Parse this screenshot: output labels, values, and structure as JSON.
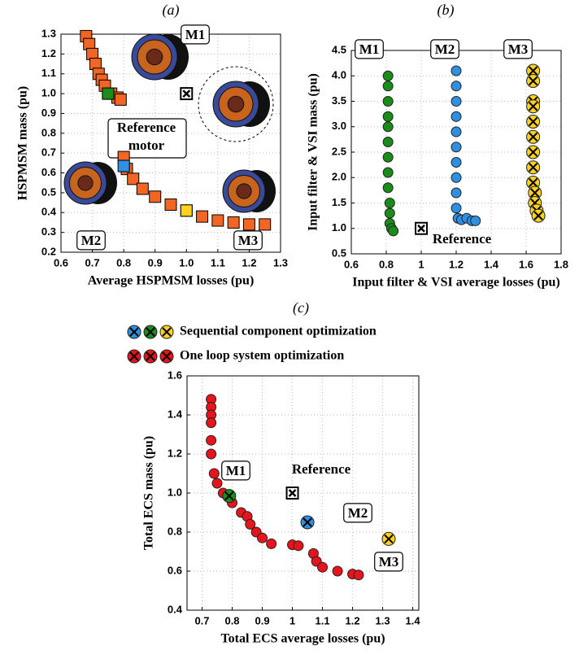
{
  "chart_data": [
    {
      "type": "scatter",
      "title": "(a)",
      "xlabel": "Average HSPMSM losses (pu)",
      "ylabel": "HSPMSM mass (pu)",
      "xlim": [
        0.6,
        1.3
      ],
      "ylim": [
        0.2,
        1.3
      ],
      "xticks": [
        0.6,
        0.7,
        0.8,
        0.9,
        {
          "value": 1,
          "label": "1.0"
        },
        1.1,
        1.2,
        1.3
      ],
      "yticks": [
        0.2,
        0.3,
        0.4,
        0.5,
        0.6,
        0.7,
        0.8,
        0.9,
        {
          "value": 1,
          "label": "1.0"
        },
        1.1,
        1.2,
        1.3
      ],
      "grid": true,
      "series": [
        {
          "color": "#f26522",
          "marker": "square",
          "x": [
            0.68,
            0.69,
            0.7,
            0.71,
            0.72,
            0.73,
            0.74,
            0.76,
            0.78,
            0.79,
            0.8,
            0.81,
            0.83,
            0.86,
            0.9,
            0.95,
            1.0,
            1.05,
            1.1,
            1.15,
            1.2,
            1.25
          ],
          "y": [
            1.29,
            1.25,
            1.2,
            1.15,
            1.1,
            1.07,
            1.04,
            1.0,
            0.98,
            0.97,
            0.68,
            0.62,
            0.57,
            0.52,
            0.48,
            0.44,
            0.41,
            0.38,
            0.36,
            0.35,
            0.34,
            0.34
          ]
        },
        {
          "color": "#1a8c1a",
          "marker": "square",
          "x": [
            0.75
          ],
          "y": [
            1.0
          ]
        },
        {
          "color": "#2f8fe0",
          "marker": "square",
          "x": [
            0.8
          ],
          "y": [
            0.635
          ]
        },
        {
          "color": "#ffd21f",
          "marker": "square",
          "x": [
            1.0
          ],
          "y": [
            0.41
          ]
        },
        {
          "color": "#ffffff",
          "marker": "x-square",
          "x": [
            1.0
          ],
          "y": [
            1.0
          ]
        }
      ],
      "annotations": [
        "M1",
        "M2",
        "M3",
        "Reference",
        "motor"
      ]
    },
    {
      "type": "scatter",
      "title": "(b)",
      "xlabel": "Input filter & VSI average losses (pu)",
      "ylabel": "Input filter & VSI mass (pu)",
      "xlim": [
        0.6,
        1.8
      ],
      "ylim": [
        0.5,
        4.5
      ],
      "xticks": [
        0.6,
        0.8,
        1,
        1.2,
        1.4,
        1.6,
        1.8
      ],
      "yticks": [
        0.5,
        {
          "value": 1,
          "label": "1.0"
        },
        1.5,
        {
          "value": 2,
          "label": "2.0"
        },
        2.5,
        {
          "value": 3,
          "label": "3.0"
        },
        3.5,
        {
          "value": 4,
          "label": "4.0"
        },
        4.5
      ],
      "grid": true,
      "series": [
        {
          "color": "#1a8c1a",
          "marker": "circle",
          "x": [
            0.81,
            0.81,
            0.81,
            0.81,
            0.81,
            0.81,
            0.81,
            0.81,
            0.81,
            0.82,
            0.82,
            0.82,
            0.83,
            0.84
          ],
          "y": [
            4.0,
            3.8,
            3.5,
            3.2,
            3.0,
            2.7,
            2.4,
            2.1,
            1.8,
            1.5,
            1.3,
            1.1,
            1.0,
            0.95
          ]
        },
        {
          "color": "#2f8fe0",
          "marker": "circle",
          "x": [
            1.2,
            1.2,
            1.2,
            1.2,
            1.2,
            1.2,
            1.2,
            1.2,
            1.2,
            1.2,
            1.21,
            1.23,
            1.26,
            1.29,
            1.31
          ],
          "y": [
            4.1,
            3.8,
            3.5,
            3.2,
            2.9,
            2.6,
            2.3,
            2.0,
            1.7,
            1.4,
            1.2,
            1.17,
            1.2,
            1.15,
            1.15
          ]
        },
        {
          "color": "#ffd21f",
          "marker": "x-circle",
          "x": [
            1.64,
            1.64,
            1.64,
            1.64,
            1.64,
            1.64,
            1.64,
            1.64,
            1.64,
            1.65,
            1.65,
            1.66,
            1.67
          ],
          "y": [
            4.1,
            3.9,
            3.5,
            3.4,
            3.1,
            2.8,
            2.5,
            2.2,
            1.9,
            1.7,
            1.5,
            1.35,
            1.25
          ]
        },
        {
          "color": "#ffffff",
          "marker": "x-square",
          "x": [
            1.0
          ],
          "y": [
            1.0
          ]
        }
      ],
      "annotations": [
        "M1",
        "M2",
        "M3",
        "Reference"
      ]
    },
    {
      "type": "scatter",
      "title": "(c)",
      "xlabel": "Total ECS average losses (pu)",
      "ylabel": "Total ECS mass (pu)",
      "xlim": [
        0.65,
        1.42
      ],
      "ylim": [
        0.4,
        1.6
      ],
      "xticks": [
        0.7,
        0.8,
        0.9,
        1,
        1.1,
        1.2,
        1.3,
        1.4
      ],
      "yticks": [
        0.4,
        0.6,
        0.8,
        {
          "value": 1,
          "label": "1.0"
        },
        1.2,
        1.4,
        1.6
      ],
      "grid": true,
      "legend": [
        {
          "label": "Sequential component optimization",
          "colors": [
            "#2f8fe0",
            "#1a8c1a",
            "#ffd21f"
          ]
        },
        {
          "label": "One loop system optimization",
          "colors": [
            "#e8141c",
            "#e8141c",
            "#e8141c"
          ]
        }
      ],
      "series": [
        {
          "color": "#e8141c",
          "marker": "circle",
          "x": [
            0.73,
            0.73,
            0.73,
            0.73,
            0.73,
            0.73,
            0.74,
            0.75,
            0.77,
            0.8,
            0.83,
            0.85,
            0.86,
            0.88,
            0.9,
            0.93,
            1.0,
            1.02,
            1.07,
            1.08,
            1.1,
            1.15,
            1.2,
            1.22
          ],
          "y": [
            1.48,
            1.44,
            1.4,
            1.36,
            1.27,
            1.2,
            1.1,
            1.05,
            1.0,
            0.95,
            0.9,
            0.88,
            0.84,
            0.8,
            0.77,
            0.74,
            0.735,
            0.73,
            0.69,
            0.65,
            0.62,
            0.6,
            0.585,
            0.58
          ]
        },
        {
          "color": "#1a8c1a",
          "marker": "x-circle",
          "x": [
            0.79
          ],
          "y": [
            0.985
          ]
        },
        {
          "color": "#2f8fe0",
          "marker": "x-circle",
          "x": [
            1.05
          ],
          "y": [
            0.85
          ]
        },
        {
          "color": "#ffd21f",
          "marker": "x-circle",
          "x": [
            1.32
          ],
          "y": [
            0.765
          ]
        },
        {
          "color": "#ffffff",
          "marker": "x-square",
          "x": [
            1.0
          ],
          "y": [
            1.0
          ]
        }
      ],
      "annotations": [
        "M1",
        "Reference",
        "M2",
        "M3"
      ]
    }
  ]
}
